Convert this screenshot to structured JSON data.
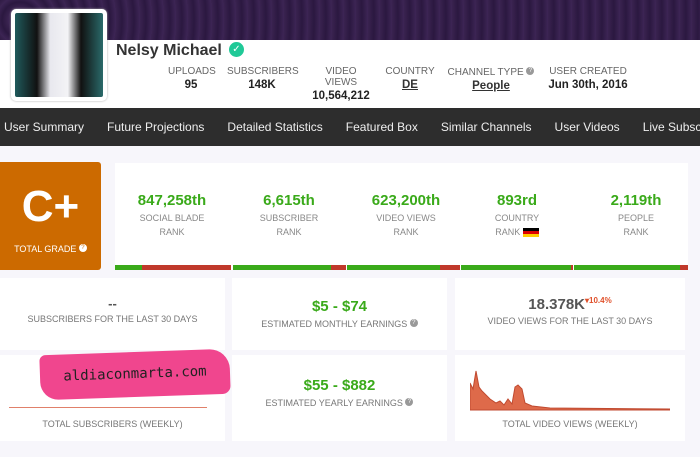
{
  "channel": {
    "name": "Nelsy Michael",
    "stats": [
      {
        "label": "UPLOADS",
        "value": "95"
      },
      {
        "label": "SUBSCRIBERS",
        "value": "148K"
      },
      {
        "label": "VIDEO VIEWS",
        "value": "10,564,212"
      },
      {
        "label": "COUNTRY",
        "value": "DE"
      },
      {
        "label": "CHANNEL TYPE",
        "value": "People"
      },
      {
        "label": "USER CREATED",
        "value": "Jun 30th, 2016"
      }
    ]
  },
  "nav": [
    "User Summary",
    "Future Projections",
    "Detailed Statistics",
    "Featured Box",
    "Similar Channels",
    "User Videos",
    "Live Subscriber Count"
  ],
  "grade": {
    "value": "C+",
    "label": "TOTAL GRADE"
  },
  "ranks": [
    {
      "value": "847,258th",
      "l1": "SOCIAL BLADE",
      "l2": "RANK",
      "progress": 0.23
    },
    {
      "value": "6,615th",
      "l1": "SUBSCRIBER",
      "l2": "RANK",
      "progress": 0.87
    },
    {
      "value": "623,200th",
      "l1": "VIDEO VIEWS",
      "l2": "RANK",
      "progress": 0.82
    },
    {
      "value": "893rd",
      "l1": "COUNTRY",
      "l2": "RANK",
      "progress": 0.98
    },
    {
      "value": "2,119th",
      "l1": "PEOPLE",
      "l2": "RANK",
      "progress": 0.93
    }
  ],
  "cards": {
    "subs30": {
      "value": "--",
      "label": "SUBSCRIBERS FOR THE LAST 30 DAYS"
    },
    "monthly": {
      "value": "$5  -  $74",
      "label": "ESTIMATED MONTHLY EARNINGS"
    },
    "views30": {
      "value": "18.378K",
      "change": "▾10.4%",
      "label": "VIDEO VIEWS FOR THE LAST 30 DAYS"
    },
    "subsWeekly": {
      "label": "TOTAL SUBSCRIBERS (WEEKLY)"
    },
    "yearly": {
      "value": "$55  -  $882",
      "label": "ESTIMATED YEARLY EARNINGS"
    },
    "viewsWeekly": {
      "label": "TOTAL VIDEO VIEWS (WEEKLY)"
    }
  },
  "watermark": "aldiaconmarta.com",
  "colors": {
    "green": "#3aaa1a",
    "red": "#c0392b",
    "grade": "#cc6a00",
    "nav": "#2d2d2d"
  }
}
